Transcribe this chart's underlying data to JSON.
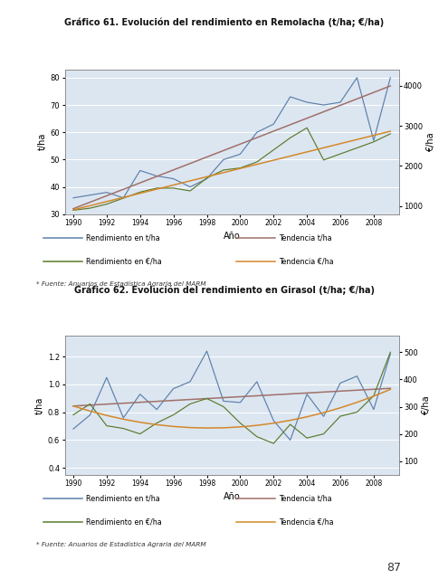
{
  "title1": "Gráfico 61. Evolución del rendimiento en Remolacha (t/ha; €/ha)",
  "title2": "Gráfico 62. Evolución del rendimiento en Girasol (t/ha; €/ha)",
  "source_text": "* Fuente: Anuarios de Estadística Agraria del MARM",
  "page_number": "87",
  "chart1": {
    "years": [
      1990,
      1991,
      1992,
      1993,
      1994,
      1995,
      1996,
      1997,
      1998,
      1999,
      2000,
      2001,
      2002,
      2003,
      2004,
      2005,
      2006,
      2007,
      2008,
      2009
    ],
    "rend_tha": [
      36,
      37,
      38,
      36,
      46,
      44,
      43,
      40,
      43,
      50,
      52,
      60,
      63,
      73,
      71,
      70,
      71,
      80,
      57,
      80
    ],
    "rend_eurha": [
      900,
      950,
      1050,
      1200,
      1350,
      1450,
      1450,
      1380,
      1700,
      1900,
      1950,
      2100,
      2400,
      2700,
      2950,
      2150,
      2300,
      2450,
      2600,
      2800
    ],
    "ylim_left": [
      30,
      83
    ],
    "yticks_left": [
      30,
      40,
      50,
      60,
      70,
      80
    ],
    "ylim_right": [
      800,
      4400
    ],
    "yticks_right": [
      1000,
      2000,
      3000,
      4000
    ],
    "ylabel_left": "t/ha",
    "ylabel_right": "€/ha",
    "xlabel": "Año",
    "line_tha_color": "#5b7faa",
    "line_eurha_color": "#5a7a2a",
    "trend_tha_color": "#a0706a",
    "trend_eurha_color": "#d4882a"
  },
  "chart2": {
    "years": [
      1990,
      1991,
      1992,
      1993,
      1994,
      1995,
      1996,
      1997,
      1998,
      1999,
      2000,
      2001,
      2002,
      2003,
      2004,
      2005,
      2006,
      2007,
      2008,
      2009
    ],
    "rend_tha": [
      0.68,
      0.78,
      1.05,
      0.76,
      0.93,
      0.82,
      0.97,
      1.02,
      1.24,
      0.88,
      0.87,
      1.02,
      0.74,
      0.6,
      0.93,
      0.77,
      1.01,
      1.06,
      0.82,
      1.22
    ],
    "rend_eurha": [
      270,
      310,
      230,
      220,
      200,
      240,
      270,
      310,
      330,
      300,
      240,
      190,
      165,
      235,
      185,
      200,
      265,
      280,
      340,
      500
    ],
    "ylim_left": [
      0.35,
      1.35
    ],
    "yticks_left": [
      0.4,
      0.6,
      0.8,
      1.0,
      1.2
    ],
    "ylim_right": [
      50,
      560
    ],
    "yticks_right": [
      100,
      200,
      300,
      400,
      500
    ],
    "ylabel_left": "t/ha",
    "ylabel_right": "€/ha",
    "xlabel": "Año",
    "line_tha_color": "#5b7faa",
    "line_eurha_color": "#5a7a2a",
    "trend_tha_color": "#a0706a",
    "trend_eurha_color": "#d4882a"
  },
  "legend_labels": [
    "Rendimiento en t/ha",
    "Rendimiento en €/ha",
    "Tendencia t/ha",
    "Tendencia €/ha"
  ],
  "outer_bg": "#ffffff",
  "box_bg": "#dce6f1",
  "box_edge": "#999999"
}
